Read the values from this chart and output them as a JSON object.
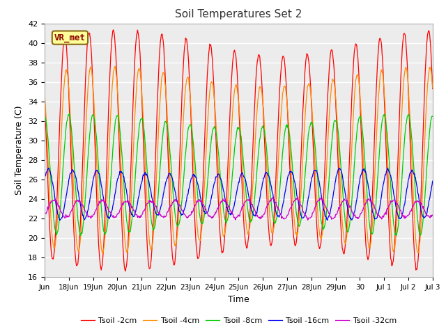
{
  "title": "Soil Temperatures Set 2",
  "xlabel": "Time",
  "ylabel": "Soil Temperature (C)",
  "ylim": [
    16,
    42
  ],
  "yticks": [
    16,
    18,
    20,
    22,
    24,
    26,
    28,
    30,
    32,
    34,
    36,
    38,
    40,
    42
  ],
  "xtick_labels": [
    "Jun",
    "18Jun",
    "19Jun",
    "20Jun",
    "21Jun",
    "22Jun",
    "23Jun",
    "24Jun",
    "25Jun",
    "26Jun",
    "27Jun",
    "28Jun",
    "29Jun",
    "30",
    "Jul 1",
    "Jul 2",
    "Jul 3"
  ],
  "series": [
    {
      "label": "Tsoil -2cm",
      "color": "#ff0000",
      "amplitude": 11.0,
      "mean": 29.0,
      "phase_lag": 0.0
    },
    {
      "label": "Tsoil -4cm",
      "color": "#ff8c00",
      "amplitude": 8.5,
      "mean": 28.0,
      "phase_lag": 0.06
    },
    {
      "label": "Tsoil -8cm",
      "color": "#00cc00",
      "amplitude": 5.5,
      "mean": 26.5,
      "phase_lag": 0.16
    },
    {
      "label": "Tsoil -16cm",
      "color": "#0000ee",
      "amplitude": 2.3,
      "mean": 24.5,
      "phase_lag": 0.32
    },
    {
      "label": "Tsoil -32cm",
      "color": "#cc00cc",
      "amplitude": 0.9,
      "mean": 23.0,
      "phase_lag": 0.55
    }
  ],
  "annotation_text": "VR_met",
  "bg_color": "#ffffff",
  "plot_bg_color": "#ececec",
  "grid_color": "#ffffff",
  "figsize": [
    6.4,
    4.8
  ],
  "dpi": 100
}
